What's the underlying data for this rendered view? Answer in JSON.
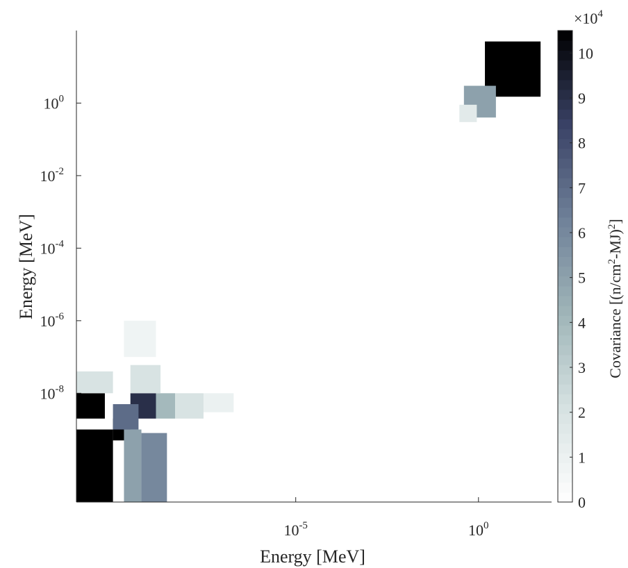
{
  "chart_data": {
    "type": "heatmap",
    "title": "",
    "xlabel": "Energy [MeV]",
    "ylabel": "Energy [MeV]",
    "x_scale": "log",
    "y_scale": "log",
    "xlim": [
      1e-11,
      100
    ],
    "ylim": [
      1e-11,
      100
    ],
    "x_ticks": [
      {
        "value": 1e-05,
        "base": "10",
        "exp": "-5"
      },
      {
        "value": 1,
        "base": "10",
        "exp": "0"
      }
    ],
    "y_ticks": [
      {
        "value": 1,
        "base": "10",
        "exp": "0"
      },
      {
        "value": 0.01,
        "base": "10",
        "exp": "-2"
      },
      {
        "value": 0.0001,
        "base": "10",
        "exp": "-4"
      },
      {
        "value": 1e-06,
        "base": "10",
        "exp": "-6"
      },
      {
        "value": 1e-08,
        "base": "10",
        "exp": "-8"
      }
    ],
    "grid": false,
    "colorbar": {
      "label_main": "Covariance [(n/cm",
      "label_sup": "2",
      "label_mid": "-MJ)",
      "label_sup2": "2",
      "label_end": "]",
      "multiplier_base": "×10",
      "multiplier_exp": "4",
      "range": [
        0,
        10.5
      ],
      "ticks": [
        "0",
        "1",
        "2",
        "3",
        "4",
        "5",
        "6",
        "7",
        "8",
        "9",
        "10"
      ],
      "colormap": [
        "#ffffff",
        "#d6e2e2",
        "#9fb5b8",
        "#6f8199",
        "#3a4266",
        "#000000"
      ]
    },
    "cells": [
      {
        "x0": 1e-11,
        "x1": 1e-10,
        "y0": 1e-11,
        "y1": 1e-09,
        "value": 10.5
      },
      {
        "x0": 1e-10,
        "x1": 3e-10,
        "y0": 5e-10,
        "y1": 2e-09,
        "value": 10.5
      },
      {
        "x0": 1e-11,
        "x1": 6e-11,
        "y0": 2e-09,
        "y1": 1e-08,
        "value": 10.5
      },
      {
        "x0": 3e-10,
        "x1": 1.5e-09,
        "y0": 2e-09,
        "y1": 1e-08,
        "value": 9
      },
      {
        "x0": 1e-10,
        "x1": 5e-10,
        "y0": 1e-09,
        "y1": 5e-09,
        "value": 7
      },
      {
        "x0": 1.5e-09,
        "x1": 5e-09,
        "y0": 2e-09,
        "y1": 1e-08,
        "value": 4
      },
      {
        "x0": 5e-09,
        "x1": 3e-08,
        "y0": 2e-09,
        "y1": 1e-08,
        "value": 2
      },
      {
        "x0": 3e-08,
        "x1": 2e-07,
        "y0": 3e-09,
        "y1": 1e-08,
        "value": 1
      },
      {
        "x0": 3e-10,
        "x1": 2e-09,
        "y0": 1e-08,
        "y1": 6e-08,
        "value": 2
      },
      {
        "x0": 2e-10,
        "x1": 1.5e-09,
        "y0": 1e-07,
        "y1": 1e-06,
        "value": 0.8
      },
      {
        "x0": 1e-11,
        "x1": 1e-10,
        "y0": 1e-08,
        "y1": 4e-08,
        "value": 2
      },
      {
        "x0": 2e-10,
        "x1": 6e-10,
        "y0": 1e-11,
        "y1": 1e-09,
        "value": 5
      },
      {
        "x0": 6e-10,
        "x1": 3e-09,
        "y0": 1e-11,
        "y1": 8e-10,
        "value": 6
      },
      {
        "x0": 1.5,
        "x1": 50,
        "y0": 1.5,
        "y1": 50,
        "value": 10.5
      },
      {
        "x0": 0.4,
        "x1": 3,
        "y0": 0.4,
        "y1": 3,
        "value": 5
      },
      {
        "x0": 0.3,
        "x1": 0.9,
        "y0": 0.3,
        "y1": 0.9,
        "value": 1.5
      }
    ]
  }
}
